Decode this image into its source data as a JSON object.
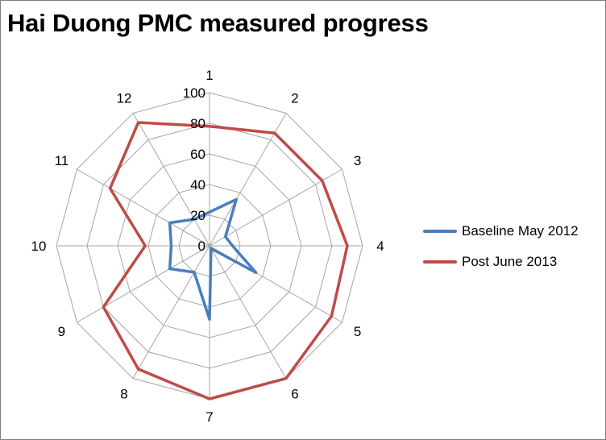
{
  "chart_data": {
    "type": "radar",
    "title": "Hai Duong PMC measured progress",
    "categories": [
      "1",
      "2",
      "3",
      "4",
      "5",
      "6",
      "7",
      "8",
      "9",
      "10",
      "11",
      "12"
    ],
    "radial_ticks": [
      "0",
      "20",
      "40",
      "60",
      "80",
      "100"
    ],
    "rlim": [
      0,
      100
    ],
    "grid": true,
    "legend_position": "right",
    "series": [
      {
        "name": "Baseline May 2012",
        "color": "#4a7ebb",
        "values": [
          22,
          35,
          12,
          15,
          35,
          2,
          48,
          20,
          30,
          25,
          30,
          20
        ]
      },
      {
        "name": "Post June 2013",
        "color": "#be4b48",
        "values": [
          78,
          85,
          85,
          90,
          92,
          100,
          100,
          93,
          80,
          42,
          75,
          93
        ]
      }
    ]
  }
}
